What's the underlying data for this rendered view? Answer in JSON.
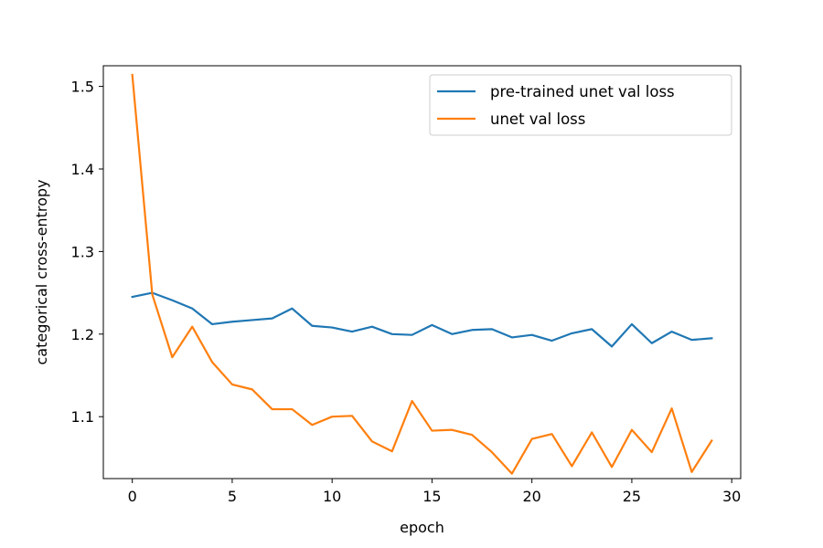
{
  "chart_data": {
    "type": "line",
    "title": "",
    "xlabel": "epoch",
    "ylabel": "categorical cross-entropy",
    "xlim": [
      -1.45,
      30.45
    ],
    "ylim": [
      1.025,
      1.525
    ],
    "xticks": [
      0,
      5,
      10,
      15,
      20,
      25,
      30
    ],
    "xtick_labels": [
      "0",
      "5",
      "10",
      "15",
      "20",
      "25",
      "30"
    ],
    "yticks": [
      1.1,
      1.2,
      1.3,
      1.4,
      1.5
    ],
    "ytick_labels": [
      "1.1",
      "1.2",
      "1.3",
      "1.4",
      "1.5"
    ],
    "grid": false,
    "legend_position": "top-right",
    "x": [
      0,
      1,
      2,
      3,
      4,
      5,
      6,
      7,
      8,
      9,
      10,
      11,
      12,
      13,
      14,
      15,
      16,
      17,
      18,
      19,
      20,
      21,
      22,
      23,
      24,
      25,
      26,
      27,
      28,
      29
    ],
    "series": [
      {
        "name": "pre-trained unet val loss",
        "color": "#1f77b4",
        "values": [
          1.245,
          1.25,
          1.241,
          1.231,
          1.212,
          1.215,
          1.217,
          1.219,
          1.231,
          1.21,
          1.208,
          1.203,
          1.209,
          1.2,
          1.199,
          1.211,
          1.2,
          1.205,
          1.206,
          1.196,
          1.199,
          1.192,
          1.201,
          1.206,
          1.185,
          1.212,
          1.189,
          1.203,
          1.193,
          1.195
        ]
      },
      {
        "name": "unet val loss",
        "color": "#ff7f0e",
        "values": [
          1.514,
          1.248,
          1.172,
          1.209,
          1.166,
          1.139,
          1.133,
          1.109,
          1.109,
          1.09,
          1.1,
          1.101,
          1.07,
          1.058,
          1.119,
          1.083,
          1.084,
          1.078,
          1.057,
          1.031,
          1.073,
          1.079,
          1.04,
          1.081,
          1.039,
          1.084,
          1.057,
          1.11,
          1.033,
          1.071
        ]
      }
    ]
  }
}
